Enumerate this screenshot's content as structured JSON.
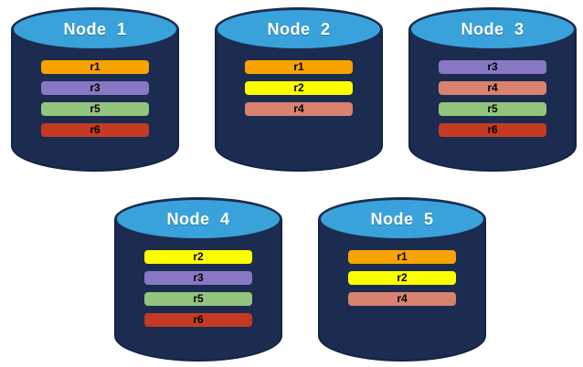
{
  "diagram": {
    "background": "#ffffff",
    "colors": {
      "cylinder_body": "#1B2C50",
      "cylinder_outline": "#132347",
      "cylinder_top": "#3AA2DB",
      "title_text": "#ffffff",
      "replica_text": "#000000",
      "replicas": {
        "r1": "#F9A302",
        "r2": "#FCFF00",
        "r3": "#8878C4",
        "r4": "#D98270",
        "r5": "#93C47D",
        "r6": "#C43A22"
      }
    },
    "nodes": [
      {
        "label": "Node 1",
        "replicas": [
          "r1",
          "r3",
          "r5",
          "r6"
        ]
      },
      {
        "label": "Node 2",
        "replicas": [
          "r1",
          "r2",
          "r4"
        ]
      },
      {
        "label": "Node 3",
        "replicas": [
          "r3",
          "r4",
          "r5",
          "r6"
        ]
      },
      {
        "label": "Node 4",
        "replicas": [
          "r2",
          "r3",
          "r5",
          "r6"
        ]
      },
      {
        "label": "Node 5",
        "replicas": [
          "r1",
          "r2",
          "r4"
        ]
      }
    ]
  }
}
